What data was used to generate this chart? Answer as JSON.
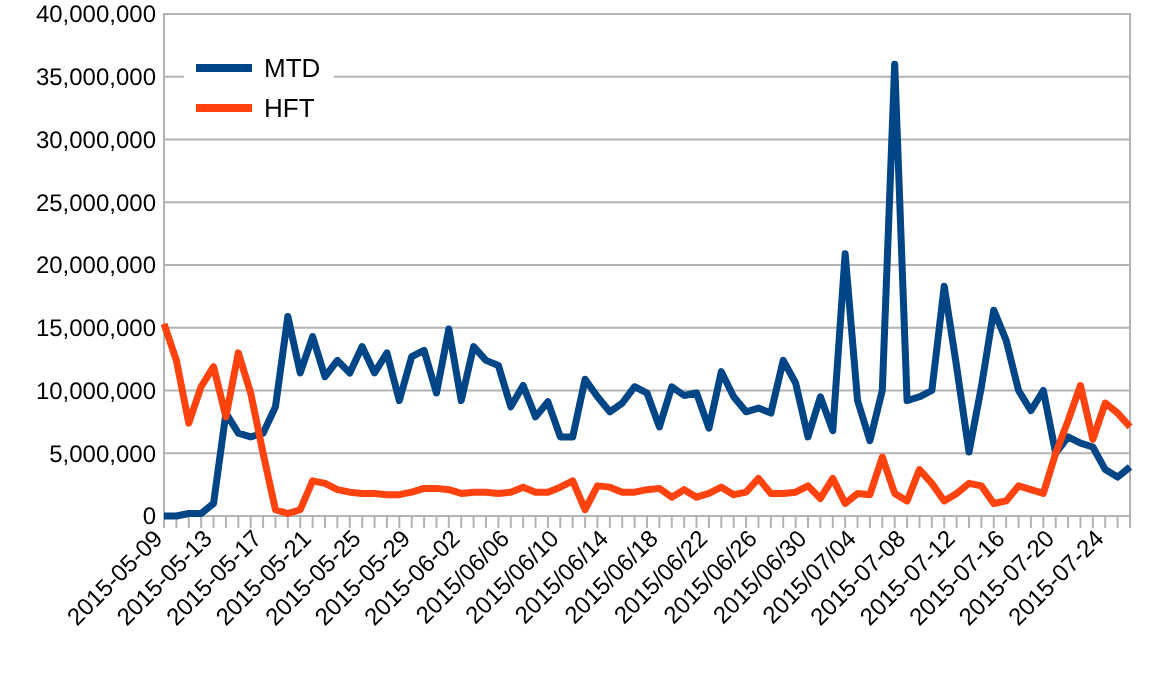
{
  "chart_data": {
    "type": "line",
    "categories": [
      "2015-05-09",
      null,
      null,
      null,
      "2015-05-13",
      null,
      null,
      null,
      "2015-05-17",
      null,
      null,
      null,
      "2015-05-21",
      null,
      null,
      null,
      "2015-05-25",
      null,
      null,
      null,
      "2015-05-29",
      null,
      null,
      null,
      "2015-06-02",
      null,
      null,
      null,
      "2015/06/06",
      null,
      null,
      null,
      "2015/06/10",
      null,
      null,
      null,
      "2015/06/14",
      null,
      null,
      null,
      "2015/06/18",
      null,
      null,
      null,
      "2015/06/22",
      null,
      null,
      null,
      "2015/06/26",
      null,
      null,
      null,
      "2015/06/30",
      null,
      null,
      null,
      "2015/07/04",
      null,
      null,
      null,
      "2015-07-08",
      null,
      null,
      null,
      "2015-07-12",
      null,
      null,
      null,
      "2015-07-16",
      null,
      null,
      null,
      "2015-07-20",
      null,
      null,
      null,
      "2015-07-24",
      null,
      null
    ],
    "series": [
      {
        "name": "MTD",
        "color": "#004586",
        "values": [
          0,
          0,
          200000,
          200000,
          1000000,
          8200000,
          6600000,
          6300000,
          6600000,
          8700000,
          15900000,
          11400000,
          14300000,
          11100000,
          12400000,
          11400000,
          13500000,
          11400000,
          13000000,
          9200000,
          12700000,
          13200000,
          9800000,
          14900000,
          9200000,
          13500000,
          12400000,
          12000000,
          8700000,
          10400000,
          7900000,
          9100000,
          6300000,
          6300000,
          10900000,
          9500000,
          8300000,
          9000000,
          10300000,
          9800000,
          7100000,
          10300000,
          9600000,
          9800000,
          7000000,
          11500000,
          9500000,
          8300000,
          8600000,
          8200000,
          12400000,
          10600000,
          6300000,
          9500000,
          6800000,
          20900000,
          9200000,
          6000000,
          10000000,
          36000000,
          9200000,
          9500000,
          10000000,
          18300000,
          11900000,
          5100000,
          10300000,
          16400000,
          14000000,
          10000000,
          8400000,
          10000000,
          5000000,
          6300000,
          5800000,
          5500000,
          3700000,
          3100000,
          3900000
        ]
      },
      {
        "name": "HFT",
        "color": "#ff420e",
        "values": [
          15300000,
          12400000,
          7400000,
          10300000,
          11900000,
          7900000,
          13000000,
          9800000,
          5000000,
          500000,
          200000,
          500000,
          2800000,
          2600000,
          2100000,
          1900000,
          1800000,
          1800000,
          1700000,
          1700000,
          1900000,
          2200000,
          2200000,
          2100000,
          1800000,
          1900000,
          1900000,
          1800000,
          1900000,
          2300000,
          1900000,
          1900000,
          2300000,
          2800000,
          500000,
          2400000,
          2300000,
          1900000,
          1900000,
          2100000,
          2200000,
          1500000,
          2100000,
          1500000,
          1800000,
          2300000,
          1700000,
          1900000,
          3000000,
          1800000,
          1800000,
          1900000,
          2400000,
          1400000,
          3000000,
          1000000,
          1800000,
          1700000,
          4700000,
          1800000,
          1200000,
          3700000,
          2600000,
          1200000,
          1800000,
          2600000,
          2400000,
          1000000,
          1200000,
          2400000,
          2100000,
          1800000,
          5000000,
          7600000,
          10400000,
          6100000,
          9000000,
          8200000,
          7100000
        ]
      }
    ],
    "ylim": [
      0,
      40000000
    ],
    "yticks": [
      {
        "value": 0,
        "label": "0"
      },
      {
        "value": 5000000,
        "label": "5,000,000"
      },
      {
        "value": 10000000,
        "label": "10,000,000"
      },
      {
        "value": 15000000,
        "label": "15,000,000"
      },
      {
        "value": 20000000,
        "label": "20,000,000"
      },
      {
        "value": 25000000,
        "label": "25,000,000"
      },
      {
        "value": 30000000,
        "label": "30,000,000"
      },
      {
        "value": 35000000,
        "label": "35,000,000"
      },
      {
        "value": 40000000,
        "label": "40,000,000"
      }
    ],
    "grid": "y",
    "legend": "top left",
    "marker": "none",
    "line_style": "solid"
  }
}
